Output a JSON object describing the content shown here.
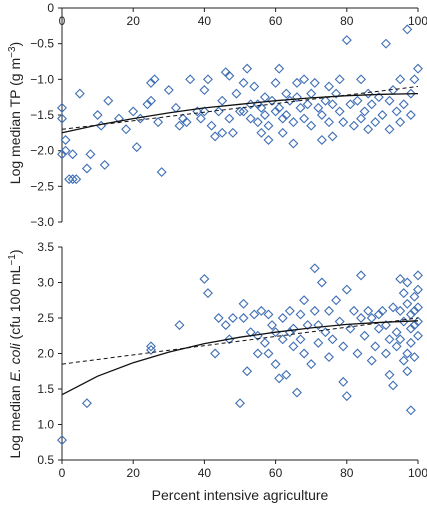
{
  "chart_data": [
    {
      "type": "scatter",
      "title": "",
      "xlabel": "",
      "ylabel": "Log median TP (g m−3)",
      "ylabel_parts": [
        {
          "text": "Log median TP (g m",
          "italic": false
        },
        {
          "text": "−3",
          "sup": true
        },
        {
          "text": ")",
          "italic": false
        }
      ],
      "xlim": [
        0,
        100
      ],
      "ylim": [
        -3.0,
        0
      ],
      "xticks": [
        0,
        20,
        40,
        60,
        80,
        100
      ],
      "xtick_labels_position": "top",
      "yticks": [
        -3.0,
        -2.5,
        -2.0,
        -1.5,
        -1.0,
        -0.5,
        0
      ],
      "ytick_labels": [
        "−3.0",
        "−2.5",
        "−2.0",
        "−1.5",
        "−1.0",
        "−0.5",
        "0"
      ],
      "grid": false,
      "marker": "diamond",
      "marker_color": "#3f6fb5",
      "points": [
        [
          0,
          -1.4
        ],
        [
          0,
          -1.55
        ],
        [
          0,
          -2.05
        ],
        [
          1,
          -1.85
        ],
        [
          1,
          -2.0
        ],
        [
          2,
          -2.4
        ],
        [
          3,
          -2.05
        ],
        [
          3,
          -2.4
        ],
        [
          4,
          -2.4
        ],
        [
          5,
          -1.2
        ],
        [
          7,
          -2.25
        ],
        [
          8,
          -2.05
        ],
        [
          10,
          -1.5
        ],
        [
          11,
          -1.65
        ],
        [
          12,
          -2.2
        ],
        [
          13,
          -1.3
        ],
        [
          16,
          -1.55
        ],
        [
          18,
          -1.7
        ],
        [
          20,
          -1.45
        ],
        [
          21,
          -1.95
        ],
        [
          22,
          -1.55
        ],
        [
          24,
          -1.35
        ],
        [
          25,
          -1.05
        ],
        [
          25,
          -1.3
        ],
        [
          26,
          -1.0
        ],
        [
          27,
          -1.6
        ],
        [
          28,
          -2.3
        ],
        [
          30,
          -1.15
        ],
        [
          32,
          -1.4
        ],
        [
          33,
          -1.65
        ],
        [
          34,
          -1.55
        ],
        [
          35,
          -1.6
        ],
        [
          36,
          -1.0
        ],
        [
          38,
          -1.45
        ],
        [
          39,
          -1.55
        ],
        [
          40,
          -1.45
        ],
        [
          40,
          -1.15
        ],
        [
          41,
          -1.0
        ],
        [
          42,
          -1.65
        ],
        [
          43,
          -1.8
        ],
        [
          44,
          -1.45
        ],
        [
          45,
          -1.3
        ],
        [
          45,
          -1.75
        ],
        [
          46,
          -0.9
        ],
        [
          47,
          -0.95
        ],
        [
          47,
          -1.55
        ],
        [
          48,
          -1.75
        ],
        [
          49,
          -1.2
        ],
        [
          50,
          -1.45
        ],
        [
          51,
          -1.05
        ],
        [
          51,
          -1.45
        ],
        [
          52,
          -0.85
        ],
        [
          53,
          -1.35
        ],
        [
          53,
          -1.55
        ],
        [
          54,
          -1.1
        ],
        [
          55,
          -1.35
        ],
        [
          55,
          -1.6
        ],
        [
          56,
          -1.4
        ],
        [
          56,
          -1.75
        ],
        [
          57,
          -1.25
        ],
        [
          57,
          -1.5
        ],
        [
          58,
          -1.65
        ],
        [
          58,
          -1.85
        ],
        [
          59,
          -1.3
        ],
        [
          60,
          -1.05
        ],
        [
          60,
          -1.45
        ],
        [
          61,
          -0.85
        ],
        [
          61,
          -1.4
        ],
        [
          62,
          -1.55
        ],
        [
          62,
          -1.75
        ],
        [
          63,
          -1.2
        ],
        [
          63,
          -1.5
        ],
        [
          64,
          -1.3
        ],
        [
          65,
          -1.6
        ],
        [
          65,
          -1.9
        ],
        [
          66,
          -1.25
        ],
        [
          66,
          -1.05
        ],
        [
          67,
          -1.4
        ],
        [
          68,
          -1.0
        ],
        [
          68,
          -1.55
        ],
        [
          69,
          -1.35
        ],
        [
          70,
          -1.2
        ],
        [
          70,
          -1.65
        ],
        [
          71,
          -1.05
        ],
        [
          72,
          -1.4
        ],
        [
          73,
          -1.5
        ],
        [
          73,
          -1.85
        ],
        [
          74,
          -1.3
        ],
        [
          75,
          -1.1
        ],
        [
          75,
          -1.6
        ],
        [
          76,
          -1.35
        ],
        [
          76,
          -1.8
        ],
        [
          77,
          -1.2
        ],
        [
          78,
          -1.0
        ],
        [
          78,
          -1.45
        ],
        [
          79,
          -1.6
        ],
        [
          80,
          -0.45
        ],
        [
          81,
          -1.35
        ],
        [
          82,
          -1.65
        ],
        [
          83,
          -1.3
        ],
        [
          84,
          -1.0
        ],
        [
          84,
          -1.55
        ],
        [
          85,
          -1.45
        ],
        [
          86,
          -1.2
        ],
        [
          86,
          -1.7
        ],
        [
          87,
          -1.35
        ],
        [
          88,
          -1.6
        ],
        [
          89,
          -1.25
        ],
        [
          90,
          -1.5
        ],
        [
          91,
          -0.5
        ],
        [
          92,
          -1.3
        ],
        [
          92,
          -1.7
        ],
        [
          93,
          -1.15
        ],
        [
          94,
          -1.45
        ],
        [
          95,
          -1.0
        ],
        [
          95,
          -1.6
        ],
        [
          96,
          -1.35
        ],
        [
          97,
          -0.3
        ],
        [
          98,
          -1.2
        ],
        [
          98,
          -1.5
        ],
        [
          99,
          -1.0
        ],
        [
          100,
          -0.85
        ]
      ],
      "fit_lines": [
        {
          "style": "solid",
          "x": [
            0,
            10,
            20,
            30,
            40,
            50,
            60,
            70,
            80,
            90,
            100
          ],
          "y": [
            -1.75,
            -1.64,
            -1.55,
            -1.47,
            -1.4,
            -1.35,
            -1.3,
            -1.26,
            -1.23,
            -1.21,
            -1.2
          ]
        },
        {
          "style": "dashed",
          "x": [
            0,
            100
          ],
          "y": [
            -1.7,
            -1.1
          ]
        }
      ]
    },
    {
      "type": "scatter",
      "title": "",
      "xlabel": "Percent intensive agriculture",
      "ylabel": "Log median E. coli (cfu 100 mL−1)",
      "ylabel_parts": [
        {
          "text": "Log median ",
          "italic": false
        },
        {
          "text": "E. coli",
          "italic": true
        },
        {
          "text": " (cfu 100 mL",
          "italic": false
        },
        {
          "text": "−1",
          "sup": true
        },
        {
          "text": ")",
          "italic": false
        }
      ],
      "xlim": [
        0,
        100
      ],
      "ylim": [
        0.5,
        3.5
      ],
      "xticks": [
        0,
        20,
        40,
        60,
        80,
        100
      ],
      "xtick_labels_position": "bottom",
      "yticks": [
        0.5,
        1.0,
        1.5,
        2.0,
        2.5,
        3.0,
        3.5
      ],
      "ytick_labels": [
        "0.5",
        "1.0",
        "1.5",
        "2.0",
        "2.5",
        "3.0",
        "3.5"
      ],
      "grid": false,
      "marker": "diamond",
      "marker_color": "#3f6fb5",
      "points": [
        [
          0,
          0.78
        ],
        [
          7,
          1.3
        ],
        [
          25,
          2.05
        ],
        [
          25,
          2.1
        ],
        [
          33,
          2.4
        ],
        [
          40,
          3.05
        ],
        [
          41,
          2.85
        ],
        [
          43,
          2.0
        ],
        [
          44,
          2.5
        ],
        [
          46,
          2.4
        ],
        [
          47,
          2.2
        ],
        [
          48,
          2.5
        ],
        [
          50,
          1.3
        ],
        [
          51,
          2.7
        ],
        [
          51,
          2.5
        ],
        [
          52,
          1.75
        ],
        [
          53,
          2.3
        ],
        [
          54,
          2.55
        ],
        [
          55,
          2.25
        ],
        [
          55,
          2.0
        ],
        [
          56,
          2.6
        ],
        [
          57,
          2.15
        ],
        [
          58,
          2.55
        ],
        [
          58,
          2.0
        ],
        [
          59,
          2.4
        ],
        [
          60,
          1.85
        ],
        [
          60,
          2.3
        ],
        [
          61,
          1.65
        ],
        [
          62,
          2.5
        ],
        [
          62,
          2.2
        ],
        [
          63,
          1.7
        ],
        [
          64,
          2.6
        ],
        [
          64,
          2.3
        ],
        [
          65,
          2.1
        ],
        [
          65,
          2.35
        ],
        [
          66,
          1.45
        ],
        [
          67,
          2.2
        ],
        [
          67,
          2.55
        ],
        [
          68,
          2.0
        ],
        [
          68,
          2.75
        ],
        [
          69,
          2.4
        ],
        [
          70,
          1.85
        ],
        [
          71,
          3.2
        ],
        [
          71,
          2.6
        ],
        [
          72,
          2.15
        ],
        [
          72,
          2.4
        ],
        [
          73,
          3.0
        ],
        [
          74,
          2.3
        ],
        [
          75,
          1.95
        ],
        [
          75,
          2.6
        ],
        [
          76,
          2.2
        ],
        [
          77,
          2.75
        ],
        [
          78,
          2.45
        ],
        [
          79,
          2.1
        ],
        [
          79,
          1.6
        ],
        [
          80,
          2.9
        ],
        [
          80,
          1.4
        ],
        [
          81,
          2.35
        ],
        [
          82,
          2.6
        ],
        [
          83,
          2.0
        ],
        [
          84,
          2.5
        ],
        [
          84,
          3.1
        ],
        [
          85,
          2.25
        ],
        [
          86,
          2.6
        ],
        [
          87,
          2.5
        ],
        [
          87,
          1.9
        ],
        [
          88,
          2.1
        ],
        [
          89,
          2.55
        ],
        [
          89,
          2.35
        ],
        [
          90,
          2.6
        ],
        [
          91,
          2.4
        ],
        [
          91,
          2.0
        ],
        [
          92,
          2.2
        ],
        [
          92,
          1.7
        ],
        [
          93,
          2.65
        ],
        [
          93,
          1.55
        ],
        [
          94,
          2.3
        ],
        [
          94,
          2.1
        ],
        [
          95,
          3.05
        ],
        [
          95,
          2.6
        ],
        [
          95,
          2.2
        ],
        [
          96,
          1.9
        ],
        [
          96,
          2.85
        ],
        [
          96,
          2.45
        ],
        [
          97,
          3.0
        ],
        [
          97,
          2.7
        ],
        [
          97,
          2.0
        ],
        [
          97,
          1.75
        ],
        [
          98,
          2.55
        ],
        [
          98,
          2.35
        ],
        [
          98,
          2.15
        ],
        [
          98,
          1.2
        ],
        [
          99,
          2.8
        ],
        [
          99,
          2.6
        ],
        [
          99,
          2.4
        ],
        [
          99,
          1.95
        ],
        [
          100,
          2.9
        ],
        [
          100,
          2.65
        ],
        [
          100,
          2.45
        ],
        [
          100,
          2.25
        ],
        [
          100,
          3.1
        ]
      ],
      "fit_lines": [
        {
          "style": "solid",
          "x": [
            0,
            10,
            20,
            30,
            40,
            50,
            60,
            70,
            80,
            90,
            100
          ],
          "y": [
            1.42,
            1.68,
            1.87,
            2.02,
            2.14,
            2.23,
            2.3,
            2.36,
            2.41,
            2.44,
            2.46
          ]
        },
        {
          "style": "dashed",
          "x": [
            0,
            100
          ],
          "y": [
            1.85,
            2.5
          ]
        }
      ]
    }
  ]
}
